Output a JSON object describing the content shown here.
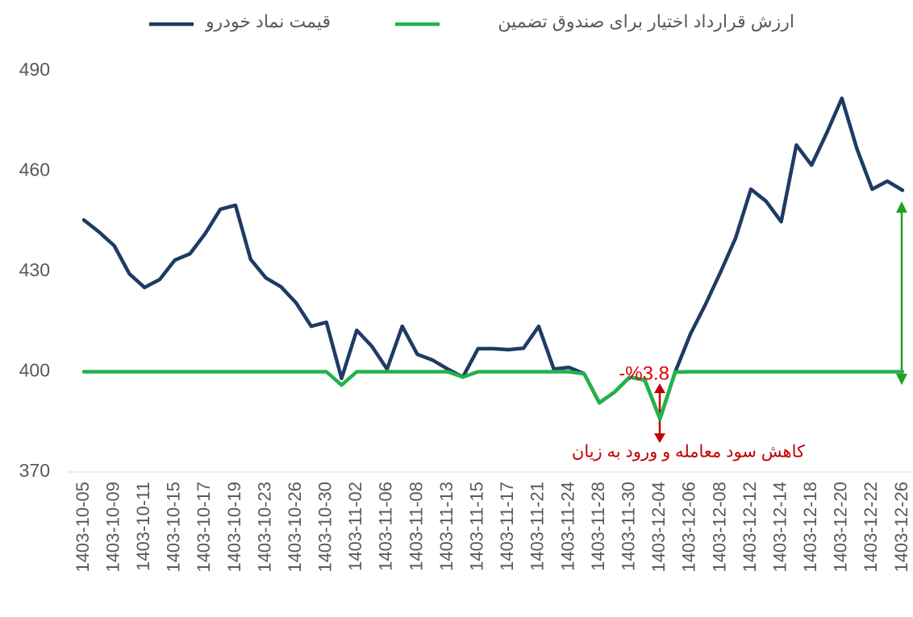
{
  "chart_data": {
    "type": "line",
    "categories": [
      "1403-10-05",
      null,
      "1403-10-09",
      null,
      "1403-10-11",
      null,
      "1403-10-15",
      null,
      "1403-10-17",
      null,
      "1403-10-19",
      null,
      "1403-10-23",
      null,
      "1403-10-26",
      null,
      "1403-10-30",
      null,
      "1403-11-02",
      null,
      "1403-11-06",
      null,
      "1403-11-08",
      null,
      "1403-11-13",
      null,
      "1403-11-15",
      null,
      "1403-11-17",
      null,
      "1403-11-21",
      null,
      "1403-11-24",
      null,
      "1403-11-28",
      null,
      "1403-11-30",
      null,
      "1403-12-04",
      null,
      "1403-12-06",
      null,
      "1403-12-08",
      null,
      "1403-12-12",
      null,
      "1403-12-14",
      null,
      "1403-12-18",
      null,
      "1403-12-20",
      null,
      "1403-12-22",
      null,
      "1403-12-26"
    ],
    "series": [
      {
        "name": "قیمت نماد خودرو",
        "color": "#1f3b64",
        "values": [
          445.4,
          441.8,
          437.7,
          429.3,
          425.2,
          427.6,
          433.4,
          435.3,
          441.3,
          448.6,
          449.8,
          433.6,
          428.1,
          425.4,
          420.6,
          413.6,
          414.8,
          398,
          412.4,
          407.6,
          400.8,
          413.6,
          405.2,
          403.5,
          400.8,
          398.4,
          406.9,
          406.9,
          406.6,
          407,
          413.6,
          400.8,
          401.3,
          399.4,
          390.7,
          393.9,
          398.4,
          397.5,
          385.9,
          399.9,
          411.2,
          420.1,
          429.8,
          440.1,
          454.6,
          451,
          444.9,
          467.8,
          461.8,
          471.4,
          481.8,
          466.6,
          454.6,
          457,
          454.3
        ]
      },
      {
        "name": "ارزش قرارداد اختیار برای صندوق تضمین",
        "color": "#22b24c",
        "values": [
          400,
          400,
          400,
          400,
          400,
          400,
          400,
          400,
          400,
          400,
          400,
          400,
          400,
          400,
          400,
          400,
          400,
          396,
          400,
          400,
          400,
          400,
          400,
          400,
          400,
          398.4,
          400,
          400,
          400,
          400,
          400,
          400,
          400,
          399.4,
          390.7,
          393.9,
          398.4,
          397.5,
          385.9,
          399.9,
          400,
          400,
          400,
          400,
          400,
          400,
          400,
          400,
          400,
          400,
          400,
          400,
          400,
          400,
          400
        ]
      }
    ],
    "ylim": [
      370,
      490
    ],
    "yticks": [
      370,
      400,
      430,
      460,
      490
    ],
    "annotations": [
      "-%3.8",
      "کاهش سود معامله و ورود به زیان"
    ],
    "legend": "top"
  }
}
